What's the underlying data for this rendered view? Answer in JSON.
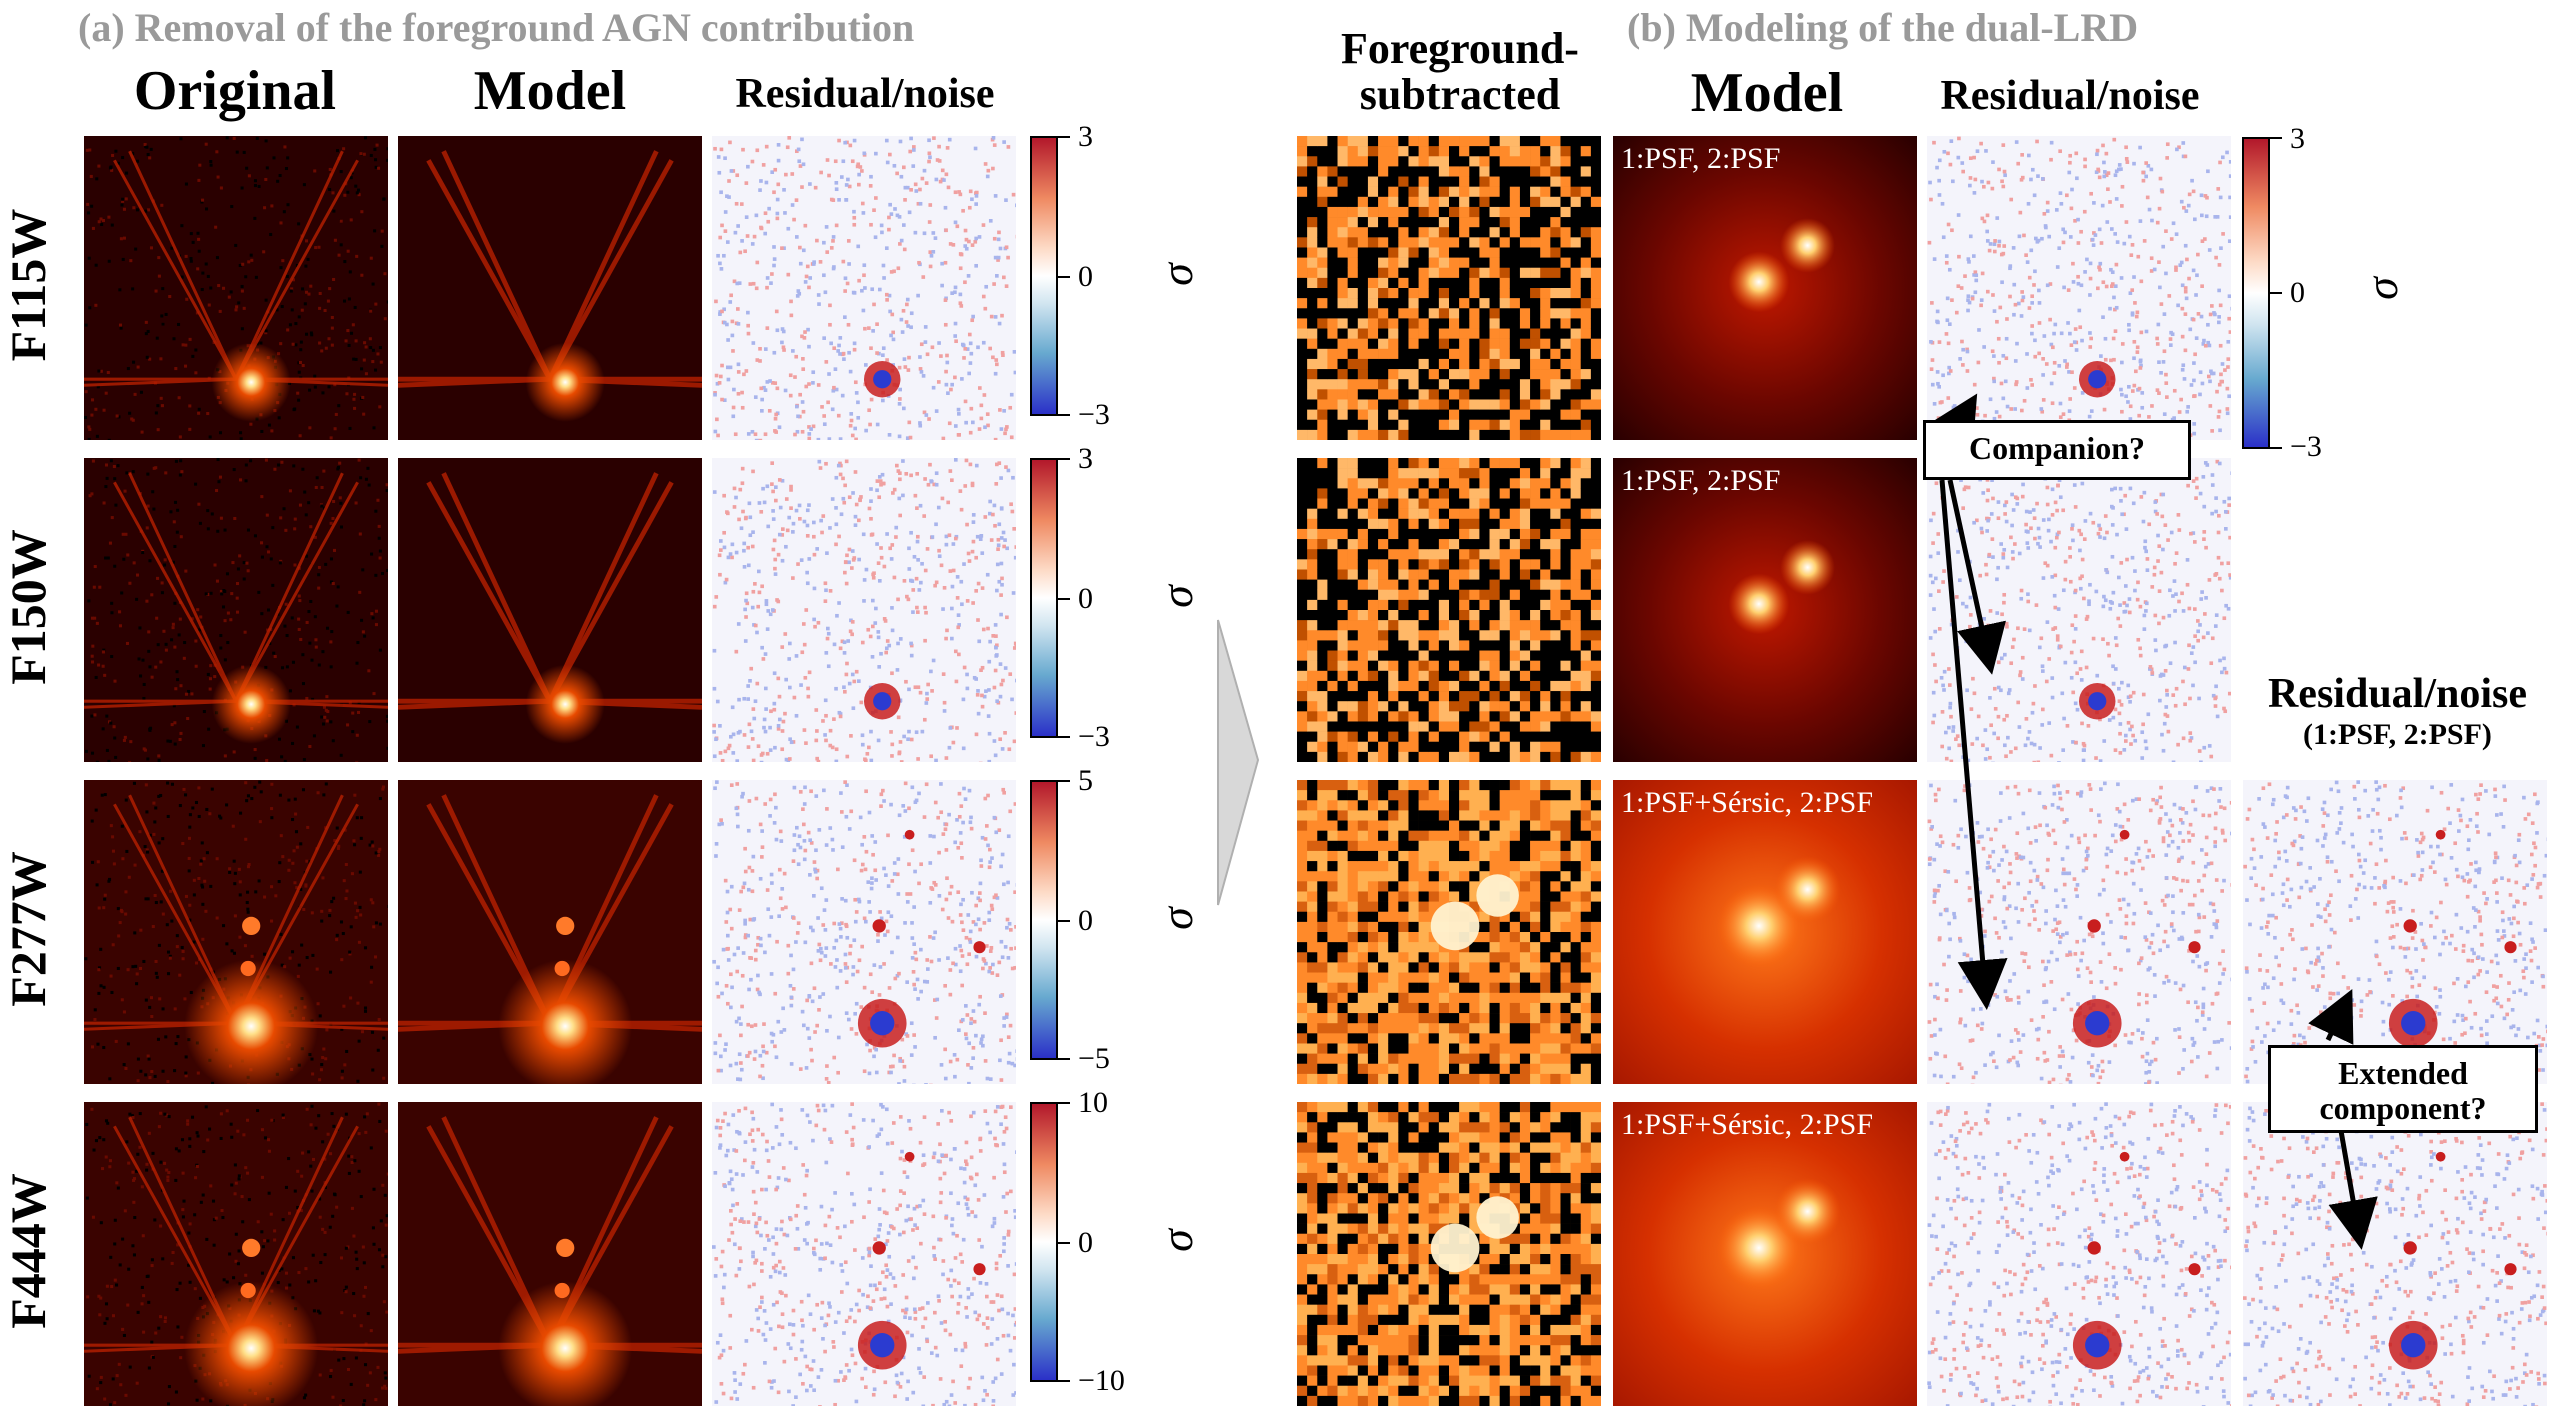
{
  "section_a": {
    "title": "(a) Removal of the foreground AGN contribution",
    "columns": [
      "Original",
      "Model",
      "Residual/noise"
    ]
  },
  "section_b": {
    "title": "(b) Modeling of the dual-LRD",
    "columns": [
      "Foreground-",
      "subtracted",
      "Model",
      "Residual/noise"
    ],
    "extra_column": {
      "title": "Residual/noise",
      "subtitle": "(1:PSF, 2:PSF)"
    },
    "model_tags": [
      "1:PSF, 2:PSF",
      "1:PSF, 2:PSF",
      "1:PSF+Sérsic, 2:PSF",
      "1:PSF+Sérsic, 2:PSF"
    ]
  },
  "rows": [
    {
      "filter": "F115W",
      "ticks": [
        "3",
        "0",
        "−3"
      ]
    },
    {
      "filter": "F150W",
      "ticks": [
        "3",
        "0",
        "−3"
      ]
    },
    {
      "filter": "F277W",
      "ticks": [
        "5",
        "0",
        "−5"
      ]
    },
    {
      "filter": "F444W",
      "ticks": [
        "10",
        "0",
        "−10"
      ]
    }
  ],
  "colorbar_b": {
    "ticks": [
      "3",
      "0",
      "−3"
    ]
  },
  "sigma": "σ",
  "callouts": {
    "companion": "Companion?",
    "extended_1": "Extended",
    "extended_2": "component?"
  },
  "colors": {
    "heat_dark": "#2a0000",
    "heat_mid": "#b81c00",
    "heat_bright": "#fff6e0",
    "fg_orange": "#ff8a2a",
    "res_red": "#c81e1e",
    "res_blue": "#2b3bd0"
  }
}
